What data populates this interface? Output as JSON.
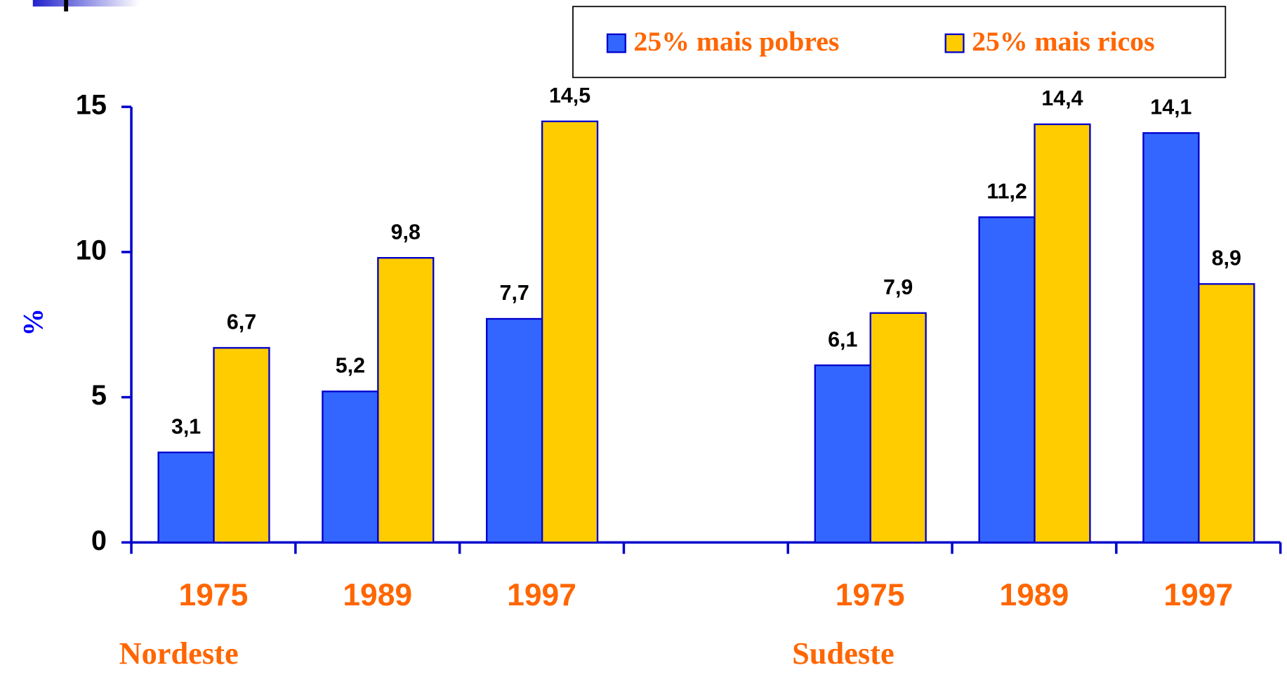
{
  "chart_data": {
    "type": "bar",
    "categories": [
      "1975",
      "1989",
      "1997",
      null,
      "1975",
      "1989",
      "1997"
    ],
    "group_labels": [
      "Nordeste",
      "Sudeste"
    ],
    "y_label": "%",
    "series": [
      {
        "name": "25% mais pobres",
        "color": "#3366ff",
        "values": [
          3.1,
          5.2,
          7.7,
          null,
          6.1,
          11.2,
          14.1
        ],
        "value_labels": [
          "3,1",
          "5,2",
          "7,7",
          null,
          "6,1",
          "11,2",
          "14,1"
        ]
      },
      {
        "name": "25% mais ricos",
        "color": "#ffcc00",
        "values": [
          6.7,
          9.8,
          14.5,
          null,
          7.9,
          14.4,
          8.9
        ],
        "value_labels": [
          "6,7",
          "9,8",
          "14,5",
          null,
          "7,9",
          "14,4",
          "8,9"
        ]
      }
    ],
    "ylim": [
      0,
      15
    ],
    "yticks": [
      0,
      5,
      10,
      15
    ]
  }
}
